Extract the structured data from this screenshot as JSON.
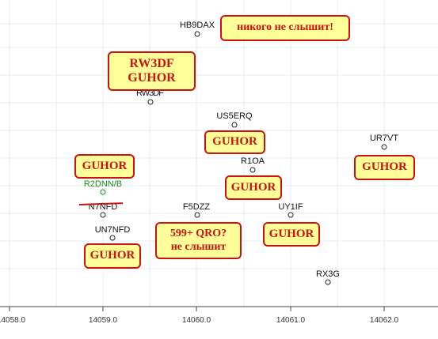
{
  "axis": {
    "ticks": [
      "14058.0",
      "14059.0",
      "14060.0",
      "14061.0",
      "14062.0"
    ]
  },
  "stations": {
    "hb9dax": "HB9DAX",
    "rw3df": "RW3DF",
    "us5erq": "US5ERQ",
    "ur7vt": "UR7VT",
    "r1oa": "R1OA",
    "r2dnn_b": "R2DNN/B",
    "n7nfd": "N7NFD",
    "f5dzz": "F5DZZ",
    "uy1if": "UY1IF",
    "un7nfd": "UN7NFD",
    "rx3g": "RX3G"
  },
  "notes": {
    "top": "никого не слышит!",
    "rw3df_line1": "RW3DF",
    "rw3df_line2": "GUHOR",
    "us5erq": "GUHOR",
    "ur7vt": "GUHOR",
    "r2dnn": "GUHOR",
    "r1oa": "GUHOR",
    "f5dzz_line1": "599+ QRO?",
    "f5dzz_line2": "не слышит",
    "uy1if": "GUHOR",
    "un7nfd": "GUHOR"
  },
  "colors": {
    "bubble_fill": "#ffff99",
    "bubble_border": "#cc1111",
    "grid": "#e3eef7",
    "spot_green": "#1a8a1a"
  }
}
